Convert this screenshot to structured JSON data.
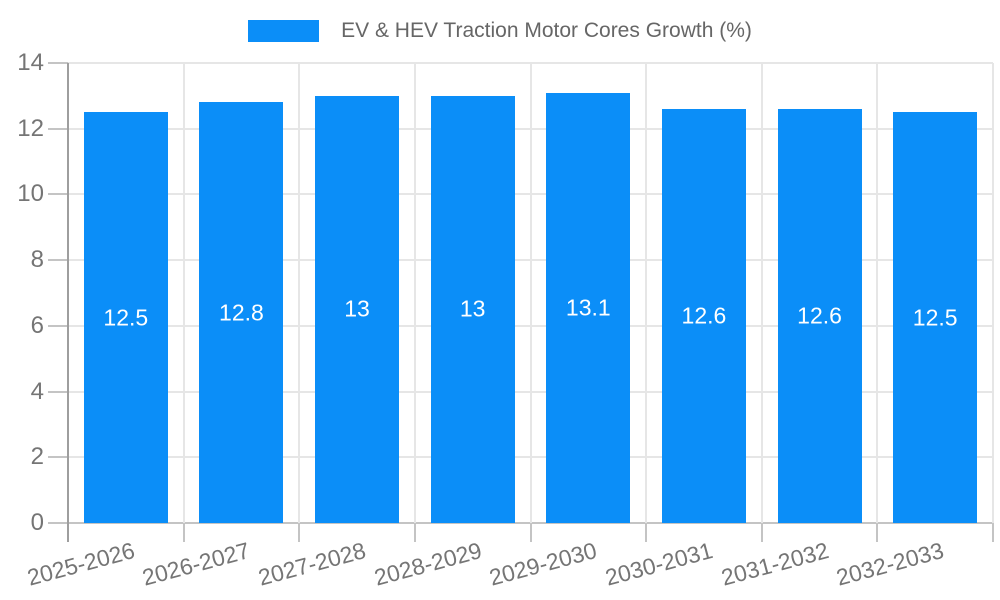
{
  "chart_data": {
    "type": "bar",
    "title": "EV & HEV Traction Motor Cores Growth (%)",
    "legend": {
      "label": "EV & HEV Traction Motor Cores Growth (%)",
      "position": "top"
    },
    "categories": [
      "2025-2026",
      "2026-2027",
      "2027-2028",
      "2028-2029",
      "2029-2030",
      "2030-2031",
      "2031-2032",
      "2032-2033"
    ],
    "values": [
      12.5,
      12.8,
      13,
      13,
      13.1,
      12.6,
      12.6,
      12.5
    ],
    "value_labels": [
      "12.5",
      "12.8",
      "13",
      "13",
      "13.1",
      "12.6",
      "12.6",
      "12.5"
    ],
    "xlabel": "",
    "ylabel": "",
    "ylim": [
      0,
      14
    ],
    "yticks": [
      0,
      2,
      4,
      6,
      8,
      10,
      12,
      14
    ],
    "grid": true,
    "colors": {
      "bar": "#0b8ef8",
      "value_label": "#ffffff",
      "axis": "#9e9e9e",
      "grid": "#e6e6e6",
      "tick": "#c4c4c4",
      "tick_label": "#757575",
      "legend_text": "#666666",
      "background": "#ffffff"
    }
  }
}
